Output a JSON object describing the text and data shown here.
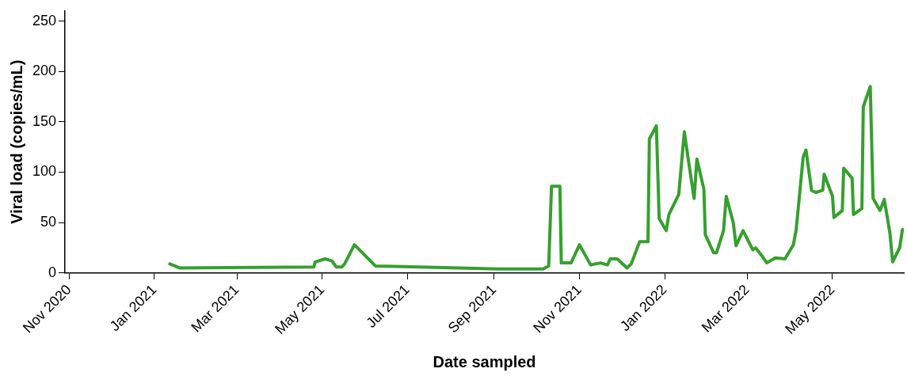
{
  "chart_data": {
    "type": "line",
    "xlabel": "Date sampled",
    "ylabel": "Viral load (copies/mL)",
    "xlim": [
      "2020-10-29",
      "2022-06-21"
    ],
    "xticks": [
      {
        "value": "2020-11-01",
        "label": "Nov 2020"
      },
      {
        "value": "2021-01-01",
        "label": "Jan 2021"
      },
      {
        "value": "2021-03-01",
        "label": "Mar 2021"
      },
      {
        "value": "2021-05-01",
        "label": "May 2021"
      },
      {
        "value": "2021-07-01",
        "label": "Jul 2021"
      },
      {
        "value": "2021-09-01",
        "label": "Sep 2021"
      },
      {
        "value": "2021-11-01",
        "label": "Nov 2021"
      },
      {
        "value": "2022-01-01",
        "label": "Jan 2022"
      },
      {
        "value": "2022-03-01",
        "label": "Mar 2022"
      },
      {
        "value": "2022-05-01",
        "label": "May 2022"
      }
    ],
    "ylim": [
      0,
      260
    ],
    "yticks": [
      0,
      50,
      100,
      150,
      200,
      250
    ],
    "series": [
      {
        "color": "#35a02e",
        "x": [
          "2021-01-12",
          "2021-01-19",
          "2021-04-25",
          "2021-04-26",
          "2021-05-03",
          "2021-05-08",
          "2021-05-11",
          "2021-05-15",
          "2021-05-17",
          "2021-05-24",
          "2021-06-08",
          "2021-08-07",
          "2021-09-04",
          "2021-10-06",
          "2021-10-10",
          "2021-10-12",
          "2021-10-18",
          "2021-10-19",
          "2021-10-26",
          "2021-11-01",
          "2021-11-09",
          "2021-11-16",
          "2021-11-21",
          "2021-11-23",
          "2021-11-28",
          "2021-12-05",
          "2021-12-08",
          "2021-12-14",
          "2021-12-20",
          "2021-12-21",
          "2021-12-26",
          "2021-12-28",
          "2022-01-02",
          "2022-01-04",
          "2022-01-11",
          "2022-01-15",
          "2022-01-18",
          "2022-01-22",
          "2022-01-24",
          "2022-01-29",
          "2022-01-30",
          "2022-02-05",
          "2022-02-07",
          "2022-02-12",
          "2022-02-14",
          "2022-02-19",
          "2022-02-21",
          "2022-02-26",
          "2022-03-05",
          "2022-03-07",
          "2022-03-11",
          "2022-03-15",
          "2022-03-21",
          "2022-03-28",
          "2022-04-03",
          "2022-04-05",
          "2022-04-10",
          "2022-04-12",
          "2022-04-16",
          "2022-04-19",
          "2022-04-24",
          "2022-04-25",
          "2022-05-01",
          "2022-05-02",
          "2022-05-08",
          "2022-05-09",
          "2022-05-15",
          "2022-05-16",
          "2022-05-22",
          "2022-05-23",
          "2022-05-28",
          "2022-05-30",
          "2022-06-04",
          "2022-06-07",
          "2022-06-11",
          "2022-06-13",
          "2022-06-18",
          "2022-06-20"
        ],
        "values": [
          9,
          5,
          6,
          11,
          14,
          12,
          6,
          6,
          9,
          28,
          7,
          5,
          4,
          4,
          7,
          86,
          86,
          10,
          10,
          28,
          8,
          10,
          8,
          14,
          14,
          5,
          9,
          31,
          31,
          133,
          146,
          54,
          42,
          58,
          78,
          140,
          111,
          74,
          113,
          83,
          38,
          20,
          20,
          42,
          76,
          50,
          27,
          42,
          23,
          25,
          18,
          10,
          15,
          14,
          28,
          43,
          115,
          122,
          82,
          80,
          82,
          98,
          76,
          55,
          62,
          104,
          94,
          58,
          64,
          165,
          185,
          74,
          62,
          73,
          40,
          11,
          25,
          43
        ]
      }
    ]
  }
}
